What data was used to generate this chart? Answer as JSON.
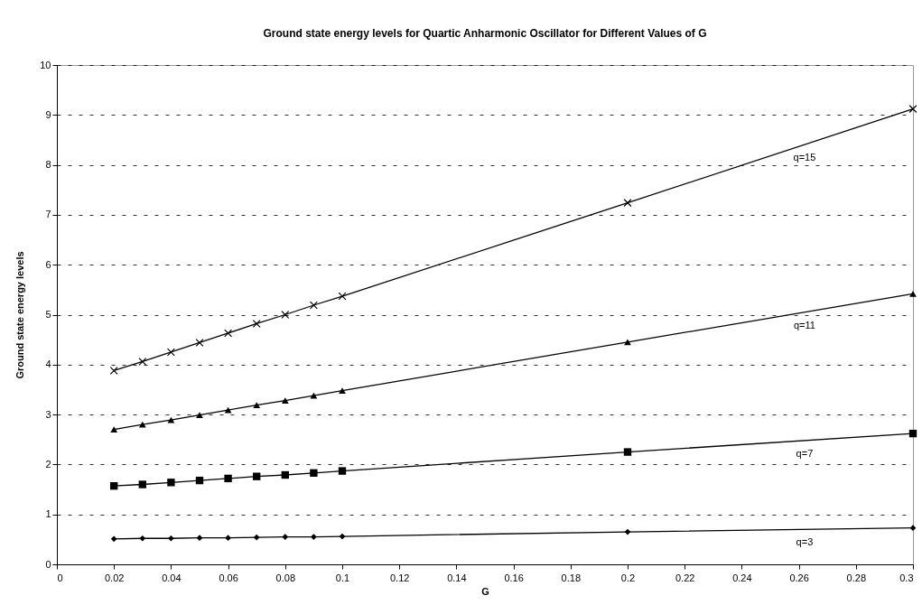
{
  "chart_data": {
    "type": "line",
    "title": "Ground state energy levels for Quartic Anharmonic Oscillator for Different Values of G",
    "xlabel": "G",
    "ylabel": "Ground state energy levels",
    "x": [
      0.02,
      0.03,
      0.04,
      0.05,
      0.06,
      0.07,
      0.08,
      0.09,
      0.1,
      0.2,
      0.3
    ],
    "series": [
      {
        "name": "q=3",
        "color": "#000000",
        "marker": "diamond",
        "values": [
          0.51,
          0.52,
          0.52,
          0.53,
          0.53,
          0.54,
          0.55,
          0.55,
          0.56,
          0.65,
          0.73
        ]
      },
      {
        "name": "q=7",
        "color": "#000000",
        "marker": "square",
        "values": [
          1.57,
          1.6,
          1.64,
          1.68,
          1.72,
          1.76,
          1.79,
          1.83,
          1.87,
          2.25,
          2.62
        ]
      },
      {
        "name": "q=11",
        "color": "#000000",
        "marker": "triangle",
        "values": [
          2.7,
          2.8,
          2.89,
          2.99,
          3.09,
          3.19,
          3.28,
          3.38,
          3.48,
          4.45,
          5.42
        ]
      },
      {
        "name": "q=15",
        "color": "#000000",
        "marker": "cross",
        "values": [
          3.88,
          4.06,
          4.25,
          4.44,
          4.63,
          4.82,
          5.0,
          5.19,
          5.37,
          7.24,
          9.12
        ]
      }
    ],
    "xlim": [
      0,
      0.3
    ],
    "xticks": [
      0,
      0.02,
      0.04,
      0.06,
      0.08,
      0.1,
      0.12,
      0.14,
      0.16,
      0.18,
      0.2,
      0.22,
      0.24,
      0.26,
      0.28,
      0.3
    ],
    "ylim": [
      0,
      10
    ],
    "yticks": [
      0,
      1,
      2,
      3,
      4,
      5,
      6,
      7,
      8,
      9,
      10
    ],
    "grid": "y",
    "line_style": "solid"
  }
}
